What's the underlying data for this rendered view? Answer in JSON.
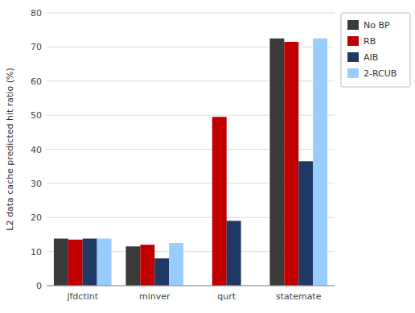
{
  "chart_data": {
    "type": "bar",
    "categories": [
      "jfdctint",
      "minver",
      "qurt",
      "statemate"
    ],
    "series": [
      {
        "name": "No BP",
        "color": "#3a3a3a",
        "values": [
          13.8,
          11.5,
          0.0,
          72.5
        ]
      },
      {
        "name": "RB",
        "color": "#c00000",
        "values": [
          13.5,
          12.0,
          49.5,
          71.5
        ]
      },
      {
        "name": "AIB",
        "color": "#1f3864",
        "values": [
          13.8,
          8.0,
          19.0,
          36.5
        ]
      },
      {
        "name": "2-RCUB",
        "color": "#99ccff",
        "values": [
          13.8,
          12.5,
          0.0,
          72.5
        ]
      }
    ],
    "ylabel": "L2 data cache predicted hit ratio (%)",
    "ylim": [
      0,
      80
    ],
    "yticks": [
      0,
      10,
      20,
      30,
      40,
      50,
      60,
      70,
      80
    ],
    "grid": true,
    "legend": "right"
  }
}
